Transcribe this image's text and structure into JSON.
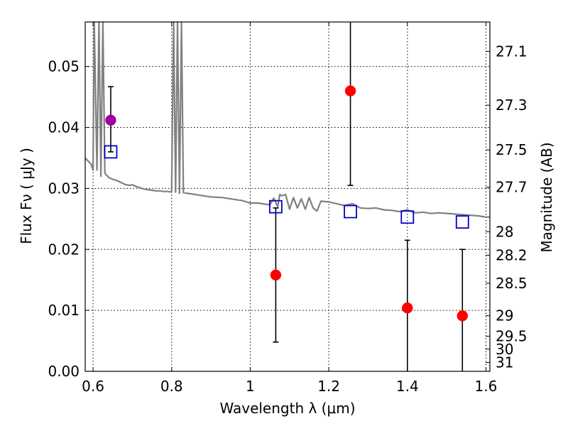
{
  "chart_data": {
    "type": "scatter",
    "xlabel": "Wavelength  λ (μm)",
    "ylabel": "Flux  Fν  ( μJy )",
    "y2label": "Magnitude (AB)",
    "xlim": [
      0.58,
      1.61
    ],
    "ylim": [
      0.0,
      0.0573
    ],
    "x_ticks": [
      0.6,
      0.8,
      1.0,
      1.2,
      1.4,
      1.6
    ],
    "x_tick_labels": [
      "0.6",
      "0.8",
      "1",
      "1.2",
      "1.4",
      "1.6"
    ],
    "y_ticks": [
      0.0,
      0.01,
      0.02,
      0.03,
      0.04,
      0.05
    ],
    "y_tick_labels": [
      "0.00",
      "0.01",
      "0.02",
      "0.03",
      "0.04",
      "0.05"
    ],
    "y2_ticks": [
      27.1,
      27.3,
      27.5,
      27.7,
      28,
      28.2,
      28.5,
      29,
      29.5,
      30,
      31
    ],
    "y2_tick_labels": [
      "27.1",
      "27.3",
      "27.5",
      "27.7",
      "28",
      "28.2",
      "28.5",
      "29",
      "29.5",
      "30",
      "31"
    ],
    "grid": true,
    "colors": {
      "sed": "#808080",
      "model": "#0000cc",
      "observed": "#ff0000",
      "observed_first": "#a000a0",
      "errorbar": "#000000"
    },
    "sed_line": {
      "x": [
        0.58,
        0.595,
        0.6,
        0.603,
        0.61,
        0.615,
        0.62,
        0.625,
        0.63,
        0.64,
        0.65,
        0.66,
        0.67,
        0.68,
        0.69,
        0.7,
        0.71,
        0.72,
        0.73,
        0.74,
        0.75,
        0.76,
        0.77,
        0.78,
        0.79,
        0.8,
        0.805,
        0.81,
        0.815,
        0.82,
        0.825,
        0.83,
        0.85,
        0.88,
        0.9,
        0.93,
        0.96,
        0.98,
        1.0,
        1.02,
        1.05,
        1.06,
        1.07,
        1.075,
        1.08,
        1.09,
        1.1,
        1.11,
        1.12,
        1.13,
        1.14,
        1.15,
        1.16,
        1.17,
        1.18,
        1.2,
        1.22,
        1.24,
        1.26,
        1.28,
        1.3,
        1.32,
        1.34,
        1.36,
        1.38,
        1.4,
        1.42,
        1.44,
        1.46,
        1.48,
        1.5,
        1.52,
        1.54,
        1.56,
        1.58,
        1.6,
        1.61
      ],
      "y": [
        0.035,
        0.034,
        0.033,
        0.0573,
        0.033,
        0.0573,
        0.032,
        0.0573,
        0.0325,
        0.0318,
        0.0315,
        0.0313,
        0.031,
        0.0307,
        0.0305,
        0.0306,
        0.0303,
        0.0301,
        0.0299,
        0.0298,
        0.0297,
        0.0296,
        0.0296,
        0.0295,
        0.0295,
        0.0294,
        0.0573,
        0.0294,
        0.0573,
        0.0292,
        0.0573,
        0.0293,
        0.0291,
        0.0288,
        0.0286,
        0.0285,
        0.0282,
        0.028,
        0.0276,
        0.0276,
        0.0273,
        0.0284,
        0.027,
        0.029,
        0.0288,
        0.029,
        0.0266,
        0.0285,
        0.0268,
        0.0283,
        0.0266,
        0.0285,
        0.0268,
        0.0263,
        0.0279,
        0.0278,
        0.0275,
        0.0272,
        0.0275,
        0.0268,
        0.0267,
        0.0268,
        0.0265,
        0.0264,
        0.0262,
        0.0265,
        0.026,
        0.0261,
        0.0259,
        0.026,
        0.0259,
        0.0258,
        0.0257,
        0.0256,
        0.0255,
        0.0253,
        0.0253
      ]
    },
    "series": [
      {
        "marker": "open-square",
        "x": [
          0.645,
          1.065,
          1.255,
          1.4,
          1.54
        ],
        "y": [
          0.036,
          0.027,
          0.0262,
          0.0253,
          0.0245
        ]
      },
      {
        "marker": "filled-circle",
        "x": [
          0.645,
          1.065,
          1.255,
          1.4,
          1.54
        ],
        "y": [
          0.0412,
          0.0158,
          0.046,
          0.0104,
          0.0091
        ],
        "yerr_low": [
          0.036,
          0.0048,
          0.0305,
          0.0,
          0.0
        ],
        "yerr_high": [
          0.0467,
          0.0268,
          0.0573,
          0.0215,
          0.02
        ]
      }
    ]
  }
}
